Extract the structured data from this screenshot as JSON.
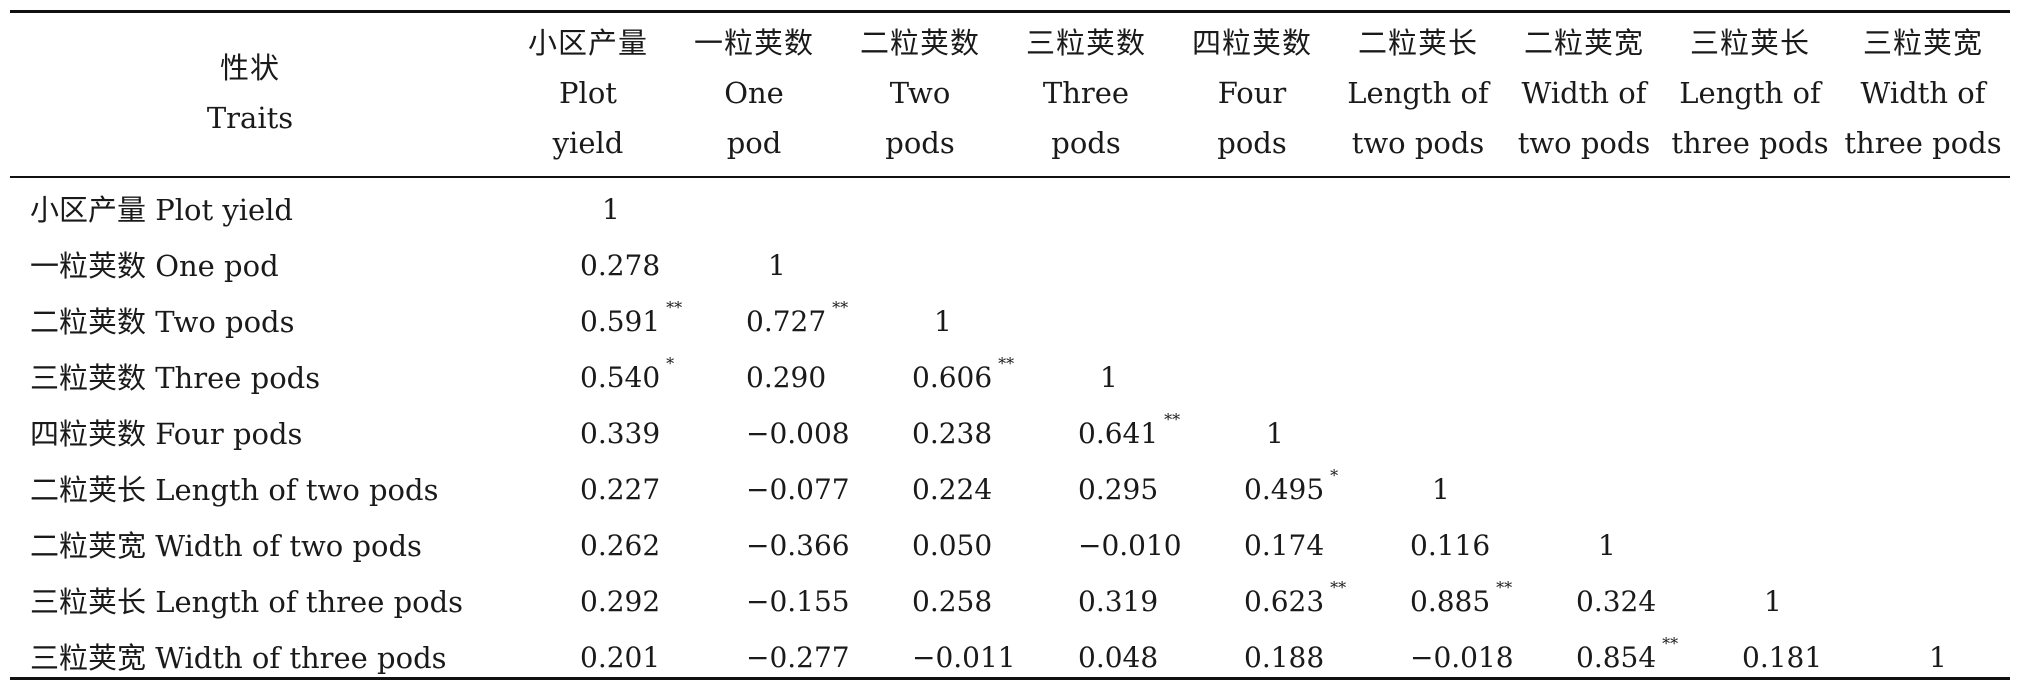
{
  "table": {
    "traits_header": {
      "cn": "性状",
      "en": "Traits"
    },
    "columns": [
      {
        "cn": "小区产量",
        "en1": "Plot",
        "en2": "yield"
      },
      {
        "cn": "一粒荚数",
        "en1": "One",
        "en2": "pod"
      },
      {
        "cn": "二粒荚数",
        "en1": "Two",
        "en2": "pods"
      },
      {
        "cn": "三粒荚数",
        "en1": "Three",
        "en2": "pods"
      },
      {
        "cn": "四粒荚数",
        "en1": "Four",
        "en2": "pods"
      },
      {
        "cn": "二粒荚长",
        "en1": "Length of",
        "en2": "two pods"
      },
      {
        "cn": "二粒荚宽",
        "en1": "Width of",
        "en2": "two pods"
      },
      {
        "cn": "三粒荚长",
        "en1": "Length of",
        "en2": "three pods"
      },
      {
        "cn": "三粒荚宽",
        "en1": "Width of",
        "en2": "three pods"
      }
    ],
    "rows": [
      {
        "label": "小区产量 Plot yield",
        "cells": [
          {
            "v": "1",
            "s": ""
          }
        ]
      },
      {
        "label": "一粒荚数 One pod",
        "cells": [
          {
            "v": "0.278",
            "s": ""
          },
          {
            "v": "1",
            "s": ""
          }
        ]
      },
      {
        "label": "二粒荚数 Two pods",
        "cells": [
          {
            "v": "0.591",
            "s": "**"
          },
          {
            "v": "0.727",
            "s": "**"
          },
          {
            "v": "1",
            "s": ""
          }
        ]
      },
      {
        "label": "三粒荚数 Three pods",
        "cells": [
          {
            "v": "0.540",
            "s": "*"
          },
          {
            "v": "0.290",
            "s": ""
          },
          {
            "v": "0.606",
            "s": "**"
          },
          {
            "v": "1",
            "s": ""
          }
        ]
      },
      {
        "label": "四粒荚数 Four pods",
        "cells": [
          {
            "v": "0.339",
            "s": ""
          },
          {
            "v": "−0.008",
            "s": ""
          },
          {
            "v": "0.238",
            "s": ""
          },
          {
            "v": "0.641",
            "s": "**"
          },
          {
            "v": "1",
            "s": ""
          }
        ]
      },
      {
        "label": "二粒荚长 Length of two pods",
        "cells": [
          {
            "v": "0.227",
            "s": ""
          },
          {
            "v": "−0.077",
            "s": ""
          },
          {
            "v": "0.224",
            "s": ""
          },
          {
            "v": "0.295",
            "s": ""
          },
          {
            "v": "0.495",
            "s": "*"
          },
          {
            "v": "1",
            "s": ""
          }
        ]
      },
      {
        "label": "二粒荚宽 Width of two pods",
        "cells": [
          {
            "v": "0.262",
            "s": ""
          },
          {
            "v": "−0.366",
            "s": ""
          },
          {
            "v": "0.050",
            "s": ""
          },
          {
            "v": "−0.010",
            "s": ""
          },
          {
            "v": "0.174",
            "s": ""
          },
          {
            "v": "0.116",
            "s": ""
          },
          {
            "v": "1",
            "s": ""
          }
        ]
      },
      {
        "label": "三粒荚长 Length of three pods",
        "cells": [
          {
            "v": "0.292",
            "s": ""
          },
          {
            "v": "−0.155",
            "s": ""
          },
          {
            "v": "0.258",
            "s": ""
          },
          {
            "v": "0.319",
            "s": ""
          },
          {
            "v": "0.623",
            "s": "**"
          },
          {
            "v": "0.885",
            "s": "**"
          },
          {
            "v": "0.324",
            "s": ""
          },
          {
            "v": "1",
            "s": ""
          }
        ]
      },
      {
        "label": "三粒荚宽 Width of three pods",
        "cells": [
          {
            "v": "0.201",
            "s": ""
          },
          {
            "v": "−0.277",
            "s": ""
          },
          {
            "v": "−0.011",
            "s": ""
          },
          {
            "v": "0.048",
            "s": ""
          },
          {
            "v": "0.188",
            "s": ""
          },
          {
            "v": "−0.018",
            "s": ""
          },
          {
            "v": "0.854",
            "s": "**"
          },
          {
            "v": "0.181",
            "s": ""
          },
          {
            "v": "1",
            "s": ""
          }
        ]
      }
    ]
  }
}
